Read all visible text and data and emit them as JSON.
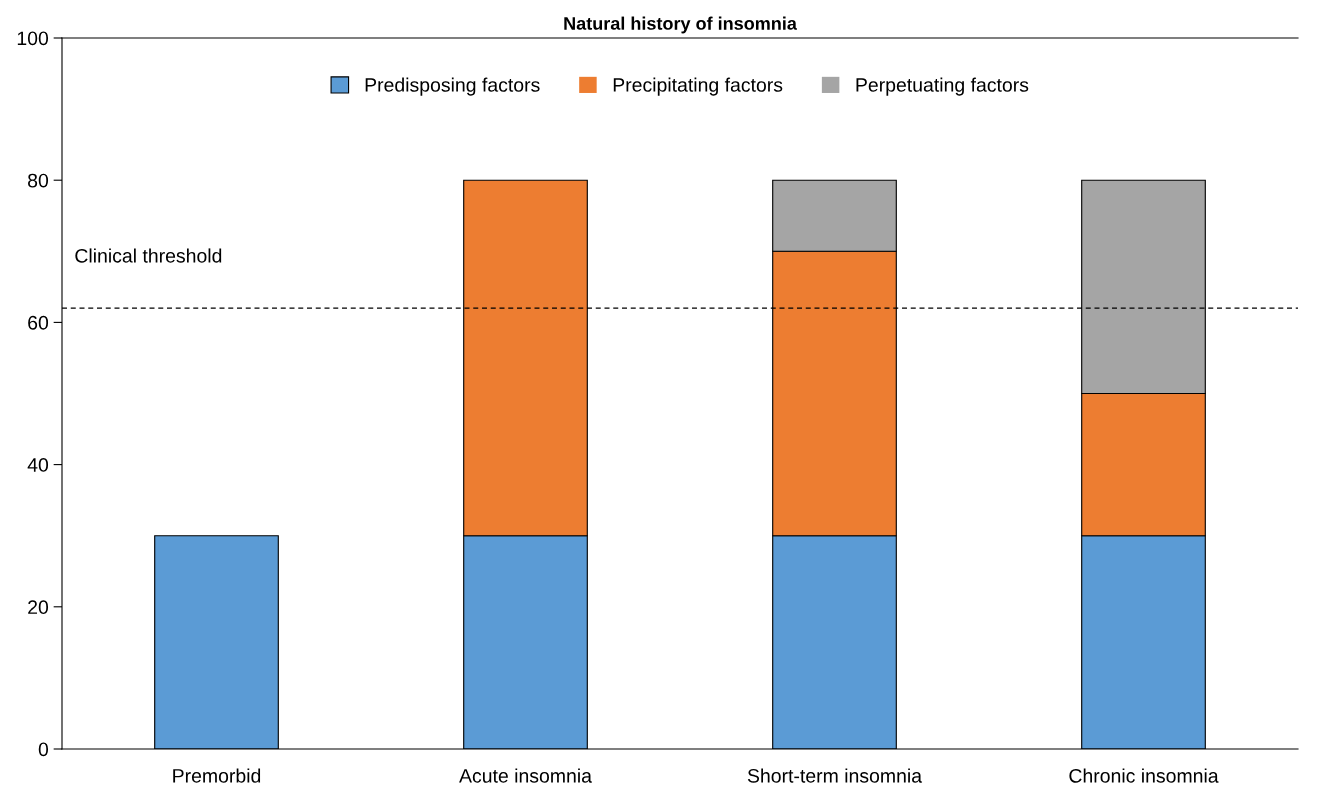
{
  "chart_data": {
    "type": "bar",
    "title": "Natural history of insomnia",
    "categories": [
      "Premorbid",
      "Acute insomnia",
      "Short-term insomnia",
      "Chronic insomnia"
    ],
    "stacked": true,
    "series": [
      {
        "name": "Predisposing factors",
        "color": "#5b9bd5",
        "values": [
          30,
          30,
          30,
          30
        ]
      },
      {
        "name": "Precipitating factors",
        "color": "#ed7d31",
        "values": [
          0,
          50,
          40,
          20
        ]
      },
      {
        "name": "Perpetuating factors",
        "color": "#a5a5a5",
        "values": [
          0,
          0,
          10,
          30
        ]
      }
    ],
    "ylim": [
      0,
      100
    ],
    "yticks": [
      0,
      20,
      40,
      60,
      80,
      100
    ],
    "ref_lines": [
      {
        "axis": "y",
        "value": 62,
        "label": "Clinical threshold",
        "color": "#000000",
        "line_style": "dashed"
      }
    ],
    "grid": false,
    "legend": "top"
  }
}
